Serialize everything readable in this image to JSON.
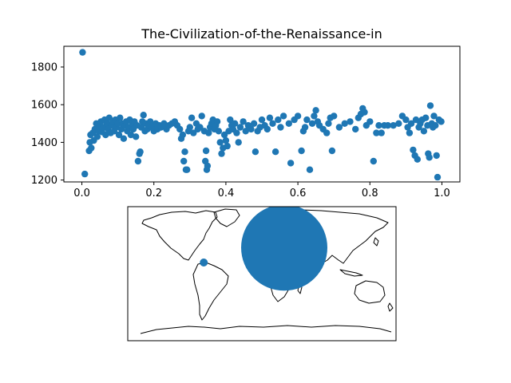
{
  "chart_data": [
    {
      "type": "scatter",
      "title": "The-Civilization-of-the-Renaissance-in",
      "xlabel": "",
      "ylabel": "",
      "xlim": [
        -0.05,
        1.05
      ],
      "ylim": [
        1190,
        1910
      ],
      "xticks": [
        0.0,
        0.2,
        0.4,
        0.6,
        0.8,
        1.0
      ],
      "xtick_labels": [
        "0.0",
        "0.2",
        "0.4",
        "0.6",
        "0.8",
        "1.0"
      ],
      "yticks": [
        1200,
        1400,
        1600,
        1800
      ],
      "ytick_labels": [
        "1200",
        "1400",
        "1600",
        "1800"
      ],
      "grid": false,
      "marker_color": "#1f77b4",
      "points": [
        [
          0.002,
          1878
        ],
        [
          0.008,
          1232
        ],
        [
          0.02,
          1355
        ],
        [
          0.022,
          1400
        ],
        [
          0.024,
          1440
        ],
        [
          0.026,
          1370
        ],
        [
          0.03,
          1450
        ],
        [
          0.033,
          1410
        ],
        [
          0.036,
          1470
        ],
        [
          0.04,
          1500
        ],
        [
          0.043,
          1430
        ],
        [
          0.046,
          1460
        ],
        [
          0.05,
          1490
        ],
        [
          0.053,
          1510
        ],
        [
          0.056,
          1455
        ],
        [
          0.06,
          1480
        ],
        [
          0.063,
          1520
        ],
        [
          0.066,
          1440
        ],
        [
          0.07,
          1500
        ],
        [
          0.073,
          1470
        ],
        [
          0.076,
          1530
        ],
        [
          0.08,
          1450
        ],
        [
          0.083,
          1490
        ],
        [
          0.086,
          1510
        ],
        [
          0.09,
          1460
        ],
        [
          0.093,
          1520
        ],
        [
          0.096,
          1480
        ],
        [
          0.1,
          1500
        ],
        [
          0.103,
          1440
        ],
        [
          0.106,
          1530
        ],
        [
          0.11,
          1470
        ],
        [
          0.113,
          1500
        ],
        [
          0.116,
          1420
        ],
        [
          0.12,
          1490
        ],
        [
          0.123,
          1510
        ],
        [
          0.126,
          1460
        ],
        [
          0.13,
          1480
        ],
        [
          0.133,
          1520
        ],
        [
          0.136,
          1440
        ],
        [
          0.14,
          1500
        ],
        [
          0.143,
          1470
        ],
        [
          0.146,
          1510
        ],
        [
          0.15,
          1430
        ],
        [
          0.153,
          1490
        ],
        [
          0.156,
          1300
        ],
        [
          0.16,
          1340
        ],
        [
          0.162,
          1350
        ],
        [
          0.165,
          1480
        ],
        [
          0.168,
          1510
        ],
        [
          0.171,
          1545
        ],
        [
          0.175,
          1460
        ],
        [
          0.178,
          1500
        ],
        [
          0.182,
          1470
        ],
        [
          0.185,
          1490
        ],
        [
          0.19,
          1510
        ],
        [
          0.195,
          1480
        ],
        [
          0.2,
          1460
        ],
        [
          0.205,
          1500
        ],
        [
          0.21,
          1470
        ],
        [
          0.215,
          1490
        ],
        [
          0.22,
          1480
        ],
        [
          0.228,
          1500
        ],
        [
          0.235,
          1470
        ],
        [
          0.242,
          1490
        ],
        [
          0.25,
          1500
        ],
        [
          0.258,
          1510
        ],
        [
          0.265,
          1490
        ],
        [
          0.272,
          1470
        ],
        [
          0.276,
          1420
        ],
        [
          0.28,
          1440
        ],
        [
          0.283,
          1300
        ],
        [
          0.286,
          1350
        ],
        [
          0.289,
          1255
        ],
        [
          0.292,
          1255
        ],
        [
          0.296,
          1460
        ],
        [
          0.3,
          1480
        ],
        [
          0.305,
          1530
        ],
        [
          0.31,
          1450
        ],
        [
          0.318,
          1500
        ],
        [
          0.322,
          1470
        ],
        [
          0.328,
          1480
        ],
        [
          0.333,
          1540
        ],
        [
          0.34,
          1460
        ],
        [
          0.343,
          1300
        ],
        [
          0.345,
          1355
        ],
        [
          0.347,
          1255
        ],
        [
          0.349,
          1275
        ],
        [
          0.352,
          1450
        ],
        [
          0.356,
          1480
        ],
        [
          0.36,
          1500
        ],
        [
          0.364,
          1520
        ],
        [
          0.368,
          1470
        ],
        [
          0.372,
          1490
        ],
        [
          0.376,
          1510
        ],
        [
          0.38,
          1460
        ],
        [
          0.384,
          1400
        ],
        [
          0.388,
          1340
        ],
        [
          0.392,
          1370
        ],
        [
          0.396,
          1440
        ],
        [
          0.4,
          1410
        ],
        [
          0.404,
          1380
        ],
        [
          0.408,
          1460
        ],
        [
          0.412,
          1520
        ],
        [
          0.416,
          1490
        ],
        [
          0.42,
          1470
        ],
        [
          0.425,
          1500
        ],
        [
          0.43,
          1450
        ],
        [
          0.435,
          1400
        ],
        [
          0.44,
          1480
        ],
        [
          0.448,
          1510
        ],
        [
          0.455,
          1460
        ],
        [
          0.462,
          1490
        ],
        [
          0.47,
          1470
        ],
        [
          0.478,
          1500
        ],
        [
          0.482,
          1350
        ],
        [
          0.488,
          1460
        ],
        [
          0.495,
          1480
        ],
        [
          0.5,
          1520
        ],
        [
          0.508,
          1490
        ],
        [
          0.515,
          1470
        ],
        [
          0.522,
          1530
        ],
        [
          0.53,
          1500
        ],
        [
          0.538,
          1350
        ],
        [
          0.545,
          1520
        ],
        [
          0.552,
          1480
        ],
        [
          0.56,
          1540
        ],
        [
          0.575,
          1500
        ],
        [
          0.58,
          1290
        ],
        [
          0.59,
          1520
        ],
        [
          0.6,
          1540
        ],
        [
          0.61,
          1355
        ],
        [
          0.615,
          1460
        ],
        [
          0.62,
          1480
        ],
        [
          0.625,
          1520
        ],
        [
          0.633,
          1255
        ],
        [
          0.64,
          1500
        ],
        [
          0.645,
          1540
        ],
        [
          0.65,
          1570
        ],
        [
          0.655,
          1510
        ],
        [
          0.66,
          1490
        ],
        [
          0.67,
          1470
        ],
        [
          0.68,
          1450
        ],
        [
          0.685,
          1500
        ],
        [
          0.69,
          1530
        ],
        [
          0.695,
          1355
        ],
        [
          0.7,
          1540
        ],
        [
          0.715,
          1480
        ],
        [
          0.73,
          1500
        ],
        [
          0.745,
          1510
        ],
        [
          0.76,
          1470
        ],
        [
          0.768,
          1530
        ],
        [
          0.775,
          1550
        ],
        [
          0.78,
          1580
        ],
        [
          0.785,
          1560
        ],
        [
          0.79,
          1490
        ],
        [
          0.8,
          1510
        ],
        [
          0.81,
          1300
        ],
        [
          0.818,
          1450
        ],
        [
          0.825,
          1490
        ],
        [
          0.832,
          1450
        ],
        [
          0.84,
          1490
        ],
        [
          0.85,
          1490
        ],
        [
          0.865,
          1490
        ],
        [
          0.88,
          1500
        ],
        [
          0.89,
          1540
        ],
        [
          0.9,
          1520
        ],
        [
          0.905,
          1480
        ],
        [
          0.91,
          1450
        ],
        [
          0.915,
          1500
        ],
        [
          0.92,
          1360
        ],
        [
          0.925,
          1330
        ],
        [
          0.928,
          1520
        ],
        [
          0.932,
          1310
        ],
        [
          0.936,
          1480
        ],
        [
          0.94,
          1500
        ],
        [
          0.945,
          1520
        ],
        [
          0.95,
          1460
        ],
        [
          0.955,
          1530
        ],
        [
          0.96,
          1490
        ],
        [
          0.962,
          1340
        ],
        [
          0.965,
          1320
        ],
        [
          0.968,
          1595
        ],
        [
          0.972,
          1500
        ],
        [
          0.975,
          1480
        ],
        [
          0.978,
          1540
        ],
        [
          0.982,
          1490
        ],
        [
          0.985,
          1330
        ],
        [
          0.988,
          1215
        ],
        [
          0.992,
          1520
        ],
        [
          0.998,
          1510
        ]
      ]
    },
    {
      "type": "map",
      "projection": "plate-carree",
      "title": "",
      "marker_color": "#1f77b4",
      "markers": [
        {
          "lon": 30,
          "lat": 35,
          "size": "large"
        },
        {
          "lon": -78,
          "lat": 15,
          "size": "small"
        }
      ]
    }
  ]
}
